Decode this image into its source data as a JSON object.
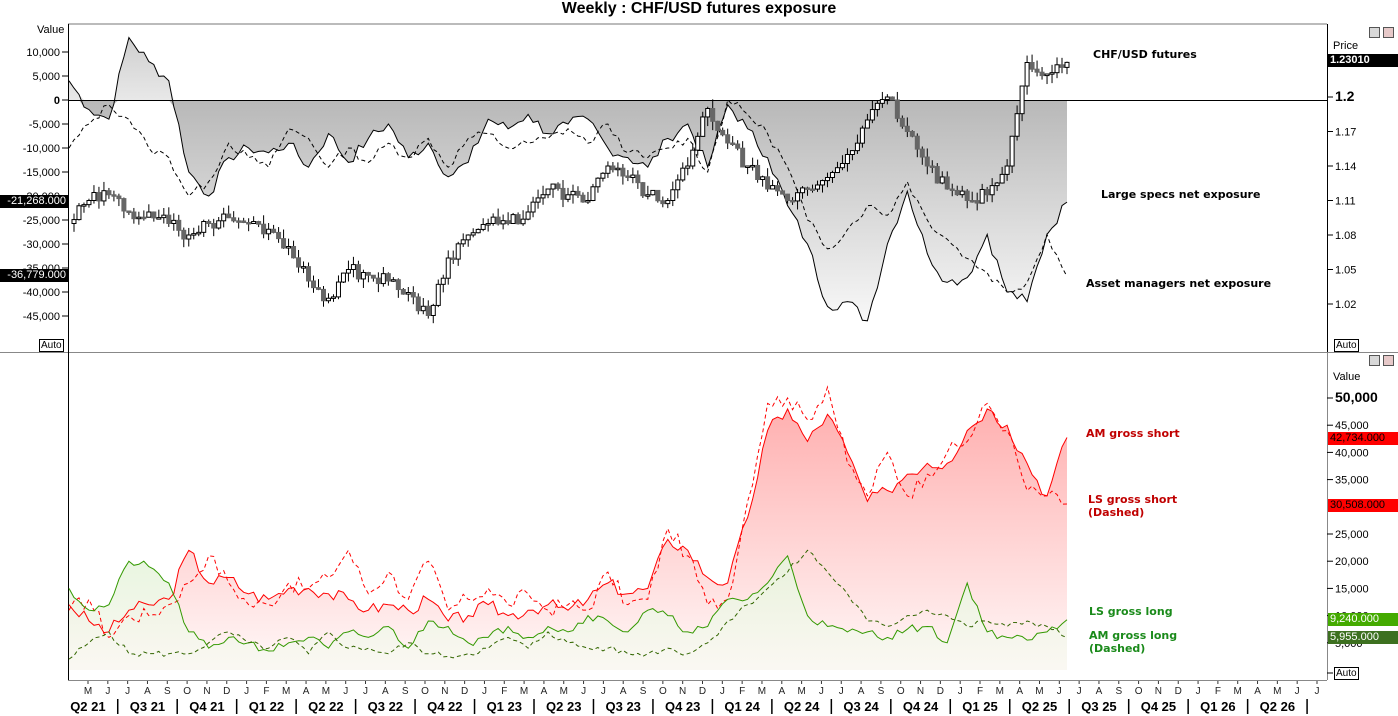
{
  "title": "Weekly : CHF/USD futures exposure",
  "top_panel": {
    "left_axis_title": "Value",
    "right_axis_title": "Price",
    "left_ticks": [
      {
        "label": "10,000",
        "v": 10000
      },
      {
        "label": "5,000",
        "v": 5000
      },
      {
        "label": "0",
        "v": 0
      },
      {
        "label": "-5,000",
        "v": -5000
      },
      {
        "label": "-10,000",
        "v": -10000
      },
      {
        "label": "-15,000",
        "v": -15000
      },
      {
        "label": "-20,000",
        "v": -20000
      },
      {
        "label": "-25,000",
        "v": -25000
      },
      {
        "label": "-30,000",
        "v": -30000
      },
      {
        "label": "-35,000",
        "v": -35000
      },
      {
        "label": "-40,000",
        "v": -40000
      },
      {
        "label": "-45,000",
        "v": -45000
      }
    ],
    "right_ticks": [
      {
        "label": "1.2",
        "v": 1.2
      },
      {
        "label": "1.17",
        "v": 1.17
      },
      {
        "label": "1.14",
        "v": 1.14
      },
      {
        "label": "1.11",
        "v": 1.11
      },
      {
        "label": "1.08",
        "v": 1.08
      },
      {
        "label": "1.05",
        "v": 1.05
      },
      {
        "label": "1.02",
        "v": 1.02
      }
    ],
    "price_tag": "1.23010",
    "ls_tag": "-21,268.000",
    "am_tag": "-36,779.000",
    "auto_label": "Auto",
    "legend": {
      "price": "CHF/USD futures",
      "ls": "Large specs net exposure",
      "am": "Asset managers net exposure"
    }
  },
  "bottom_panel": {
    "right_axis_title": "Value",
    "right_ticks": [
      {
        "label": "50,000",
        "v": 50000
      },
      {
        "label": "45,000",
        "v": 45000
      },
      {
        "label": "40,000",
        "v": 40000
      },
      {
        "label": "35,000",
        "v": 35000
      },
      {
        "label": "25,000",
        "v": 25000
      },
      {
        "label": "20,000",
        "v": 20000
      },
      {
        "label": "15,000",
        "v": 15000
      },
      {
        "label": "10,000",
        "v": 10000
      },
      {
        "label": "5,000",
        "v": 5000
      }
    ],
    "tags": {
      "am_short": "42,734.000",
      "ls_short": "30,508.000",
      "ls_long": "9,240.000",
      "am_long": "5,955.000"
    },
    "auto_label": "Auto",
    "legend": {
      "am_short": "AM gross short",
      "ls_short_1": "LS gross short",
      "ls_short_2": "(Dashed)",
      "ls_long": "LS gross long",
      "am_long_1": "AM gross long",
      "am_long_2": "(Dashed)"
    }
  },
  "x_axis": {
    "months": [
      "M",
      "J",
      "J",
      "A",
      "S",
      "O",
      "N",
      "D",
      "J",
      "F",
      "M",
      "A",
      "M",
      "J",
      "J",
      "A",
      "S",
      "O",
      "N",
      "D",
      "J",
      "F",
      "M",
      "A",
      "M",
      "J",
      "J",
      "A",
      "S",
      "O",
      "N",
      "D",
      "J",
      "F",
      "M",
      "A",
      "M",
      "J",
      "J",
      "A",
      "S",
      "O",
      "N",
      "D",
      "J",
      "F",
      "M",
      "A",
      "M",
      "J",
      "J",
      "A",
      "S",
      "O",
      "N",
      "D",
      "J",
      "F",
      "M",
      "A",
      "M",
      "J",
      "J"
    ],
    "quarters": [
      "Q2 21",
      "Q3 21",
      "Q4 21",
      "Q1 22",
      "Q2 22",
      "Q3 22",
      "Q4 22",
      "Q1 23",
      "Q2 23",
      "Q3 23",
      "Q4 23",
      "Q1 24",
      "Q2 24",
      "Q3 24",
      "Q4 24",
      "Q1 25",
      "Q2 25",
      "Q3 25",
      "Q4 25",
      "Q1 26",
      "Q2 26"
    ]
  },
  "colors": {
    "am_short": "#ff0000",
    "ls_short": "#ff0000",
    "ls_long": "#339900",
    "am_long": "#336600",
    "tag_red": "#ff0000",
    "tag_green_light": "#44aa00",
    "tag_green_dark": "#3d7020"
  },
  "chart_data": [
    {
      "type": "line",
      "title": "Weekly : CHF/USD futures exposure (top panel)",
      "ylabel": "Value",
      "ylim": [
        -50000,
        12000
      ],
      "y2label": "Price",
      "y2lim": [
        0.99,
        1.24
      ],
      "x": [
        "Apr21",
        "May21",
        "Jun21",
        "Jul21",
        "Aug21",
        "Sep21",
        "Oct21",
        "Nov21",
        "Dec21",
        "Jan22",
        "Feb22",
        "Mar22",
        "Apr22",
        "May22",
        "Jun22",
        "Jul22",
        "Aug22",
        "Sep22",
        "Oct22",
        "Nov22",
        "Dec22",
        "Jan23",
        "Feb23",
        "Mar23",
        "Apr23",
        "May23",
        "Jun23",
        "Jul23",
        "Aug23",
        "Sep23",
        "Oct23",
        "Nov23",
        "Dec23",
        "Jan24",
        "Feb24",
        "Mar24",
        "Apr24",
        "May24",
        "Jun24",
        "Jul24",
        "Aug24",
        "Sep24",
        "Oct24",
        "Nov24",
        "Dec24",
        "Jan25",
        "Feb25",
        "Mar25",
        "Apr25",
        "May25",
        "Jun25"
      ],
      "series": [
        {
          "name": "Large specs net exposure",
          "style": "solid, filled to zero",
          "values": [
            4000,
            -2000,
            -4000,
            13000,
            8000,
            4000,
            -15000,
            -20000,
            -12000,
            -10000,
            -11000,
            -9000,
            -14000,
            -7000,
            -13000,
            -8000,
            -5000,
            -12000,
            -9000,
            -16000,
            -13000,
            -4000,
            -6000,
            -3000,
            -7000,
            -5000,
            -4000,
            -10000,
            -12000,
            -14000,
            -8000,
            -5000,
            -14000,
            -1000,
            -6000,
            -12000,
            -22000,
            -30000,
            -43000,
            -42000,
            -46000,
            -30000,
            -19000,
            -32000,
            -38000,
            -37000,
            -28000,
            -40000,
            -42000,
            -28000,
            -21268
          ]
        },
        {
          "name": "Asset managers net exposure",
          "style": "dashed",
          "values": [
            -10000,
            -5000,
            -1000,
            -4000,
            -10000,
            -12000,
            -20000,
            -17000,
            -9000,
            -12000,
            -14000,
            -6000,
            -8000,
            -14000,
            -10000,
            -13000,
            -9000,
            -12000,
            -8000,
            -14000,
            -8000,
            -7000,
            -10000,
            -9000,
            -8000,
            -6000,
            -9000,
            -5000,
            -11000,
            -12000,
            -10000,
            -8000,
            -15000,
            0,
            -3000,
            -7000,
            -14000,
            -25000,
            -31000,
            -27000,
            -22000,
            -24000,
            -17000,
            -25000,
            -29000,
            -33000,
            -36000,
            -40000,
            -38000,
            -28000,
            -36779
          ]
        },
        {
          "name": "CHF/USD futures",
          "style": "weekly candlestick (right axis)",
          "values": [
            1.09,
            1.11,
            1.115,
            1.1,
            1.1,
            1.09,
            1.08,
            1.09,
            1.095,
            1.09,
            1.085,
            1.07,
            1.04,
            1.025,
            1.05,
            1.045,
            1.04,
            1.03,
            1.01,
            1.06,
            1.08,
            1.09,
            1.09,
            1.1,
            1.12,
            1.115,
            1.11,
            1.14,
            1.13,
            1.115,
            1.11,
            1.14,
            1.19,
            1.16,
            1.14,
            1.12,
            1.11,
            1.12,
            1.13,
            1.15,
            1.18,
            1.2,
            1.17,
            1.14,
            1.12,
            1.11,
            1.115,
            1.14,
            1.23,
            1.22,
            1.2301
          ]
        }
      ]
    },
    {
      "type": "area",
      "title": "Gross positions (bottom panel)",
      "ylabel": "Value",
      "ylim": [
        0,
        55000
      ],
      "x": [
        "Apr21",
        "May21",
        "Jun21",
        "Jul21",
        "Aug21",
        "Sep21",
        "Oct21",
        "Nov21",
        "Dec21",
        "Jan22",
        "Feb22",
        "Mar22",
        "Apr22",
        "May22",
        "Jun22",
        "Jul22",
        "Aug22",
        "Sep22",
        "Oct22",
        "Nov22",
        "Dec22",
        "Jan23",
        "Feb23",
        "Mar23",
        "Apr23",
        "May23",
        "Jun23",
        "Jul23",
        "Aug23",
        "Sep23",
        "Oct23",
        "Nov23",
        "Dec23",
        "Jan24",
        "Feb24",
        "Mar24",
        "Apr24",
        "May24",
        "Jun24",
        "Jul24",
        "Aug24",
        "Sep24",
        "Oct24",
        "Nov24",
        "Dec24",
        "Jan25",
        "Feb25",
        "Mar25",
        "Apr25",
        "May25",
        "Jun25"
      ],
      "series": [
        {
          "name": "AM gross short",
          "style": "solid red, filled",
          "values": [
            12000,
            9000,
            7000,
            11000,
            12000,
            13000,
            22000,
            16000,
            17000,
            14000,
            13000,
            15000,
            15000,
            14000,
            13000,
            11000,
            12000,
            11000,
            13000,
            9000,
            10000,
            12000,
            10000,
            11000,
            12000,
            11000,
            13000,
            16000,
            14000,
            15000,
            24000,
            22000,
            17000,
            16000,
            28000,
            44000,
            48000,
            42000,
            47000,
            40000,
            31000,
            33000,
            36000,
            38000,
            38000,
            44000,
            48000,
            45000,
            38000,
            32000,
            42734
          ]
        },
        {
          "name": "LS gross short (Dashed)",
          "style": "dashed red",
          "values": [
            11000,
            13000,
            6000,
            10000,
            10000,
            12000,
            16000,
            21000,
            16000,
            12000,
            12000,
            16000,
            15000,
            17000,
            22000,
            14000,
            18000,
            13000,
            20000,
            11000,
            13000,
            15000,
            12000,
            14000,
            11000,
            12000,
            11000,
            18000,
            12000,
            13000,
            26000,
            21000,
            12000,
            13000,
            31000,
            49000,
            50000,
            46000,
            52000,
            38000,
            32000,
            40000,
            32000,
            36000,
            40000,
            42000,
            49000,
            44000,
            33000,
            32000,
            30508
          ]
        },
        {
          "name": "LS gross long",
          "style": "solid green",
          "values": [
            15000,
            11000,
            12000,
            20000,
            19000,
            16000,
            7000,
            4000,
            6000,
            5000,
            3500,
            5000,
            6000,
            4000,
            7000,
            6000,
            8000,
            4000,
            9000,
            8000,
            5000,
            6000,
            8000,
            6000,
            8000,
            7000,
            10000,
            9000,
            7000,
            11000,
            10000,
            7000,
            8000,
            13000,
            13000,
            16000,
            21000,
            10000,
            8000,
            7000,
            7000,
            6000,
            7500,
            8000,
            5000,
            16000,
            7000,
            6000,
            5500,
            7000,
            9240
          ]
        },
        {
          "name": "AM gross long (Dashed)",
          "style": "dashed dark green",
          "values": [
            2000,
            5000,
            7000,
            3000,
            3000,
            3000,
            3000,
            5000,
            7000,
            5000,
            4000,
            6000,
            3000,
            7000,
            4000,
            4000,
            3000,
            5000,
            3000,
            2500,
            3000,
            4000,
            6000,
            4000,
            7000,
            5000,
            4000,
            4000,
            3000,
            3000,
            4000,
            3000,
            5000,
            9000,
            12000,
            15000,
            18000,
            22000,
            18000,
            14000,
            9000,
            8000,
            10000,
            11000,
            10000,
            8000,
            9000,
            8000,
            9000,
            8000,
            5955
          ]
        }
      ]
    }
  ]
}
